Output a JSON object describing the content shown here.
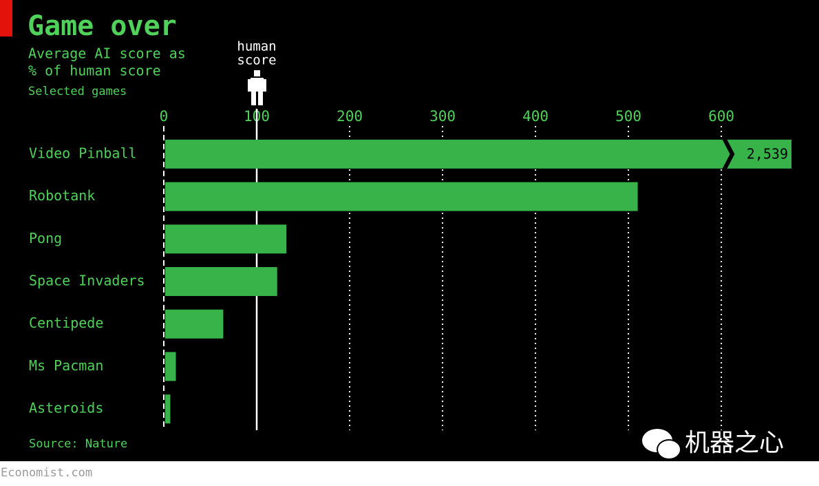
{
  "chart_data": {
    "type": "barh",
    "title": "Game over",
    "subtitle": [
      "Average AI score as",
      "% of human score"
    ],
    "note": "Selected games",
    "source": "Source: Nature",
    "footer": "Economist.com",
    "watermark": "机器之心",
    "annotation": {
      "lines": [
        "human",
        "score"
      ],
      "x": 100
    },
    "categories": [
      "Video Pinball",
      "Robotank",
      "Pong",
      "Space Invaders",
      "Centipede",
      "Ms Pacman",
      "Asteroids"
    ],
    "values": [
      2539,
      510,
      132,
      122,
      64,
      13,
      7
    ],
    "value_labels": [
      "2,539",
      null,
      null,
      null,
      null,
      null,
      null
    ],
    "color": "#37b34a",
    "xlim": [
      0,
      674
    ],
    "xticks": [
      0,
      100,
      200,
      300,
      400,
      500,
      600
    ],
    "grid": true
  }
}
